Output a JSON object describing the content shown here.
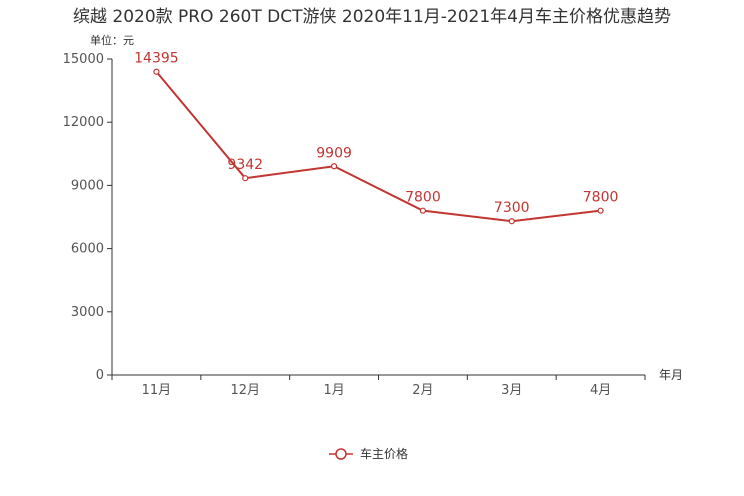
{
  "chart_data": {
    "type": "line",
    "title": "缤越 2020款 PRO 260T DCT游侠 2020年11月-2021年4月车主价格优惠趋势",
    "ylabel": "单位：元",
    "xlabel": "年月",
    "categories": [
      "11月",
      "12月",
      "1月",
      "2月",
      "3月",
      "4月"
    ],
    "ylim": [
      0,
      15000
    ],
    "yticks": [
      0,
      3000,
      6000,
      9000,
      12000,
      15000
    ],
    "series": [
      {
        "name": "车主价格",
        "values": [
          14395,
          9342,
          9909,
          7800,
          7300,
          7800
        ]
      }
    ],
    "legend": "bottom-center",
    "grid": false,
    "colors": {
      "series": "#c23531",
      "axis": "#333333"
    }
  }
}
